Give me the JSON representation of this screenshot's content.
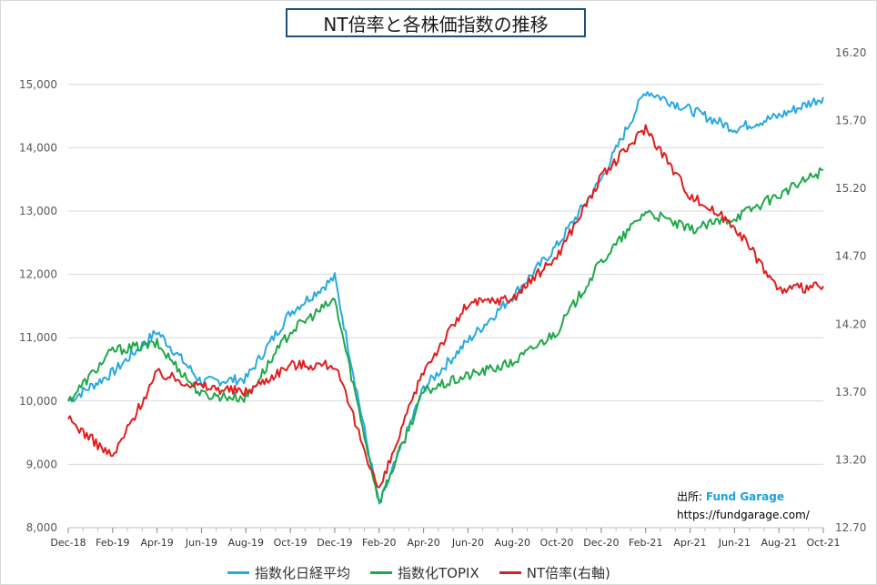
{
  "title": "NT倍率と各株価指数の推移",
  "source": {
    "label": "出所: ",
    "brand": "Fund Garage",
    "url": "https://fundgarage.com/"
  },
  "colors": {
    "nikkei": "#27a9e1",
    "topix": "#1fa84a",
    "nt": "#e11d1d",
    "grid": "#d9d9d9",
    "axis_text": "#595959"
  },
  "chart_data": {
    "type": "line",
    "title": "NT倍率と各株価指数の推移",
    "xlabel": "",
    "ylabel": "",
    "categories": [
      "Dec-18",
      "Feb-19",
      "Apr-19",
      "Jun-19",
      "Aug-19",
      "Oct-19",
      "Dec-19",
      "Feb-20",
      "Apr-20",
      "Jun-20",
      "Aug-20",
      "Oct-20",
      "Dec-20",
      "Feb-21",
      "Apr-21",
      "Jun-21",
      "Aug-21",
      "Oct-21"
    ],
    "ylim": [
      8000,
      15500
    ],
    "yticks": [
      "8,000",
      "9,000",
      "10,000",
      "11,000",
      "12,000",
      "13,000",
      "14,000",
      "15,000"
    ],
    "y2lim": [
      12.7,
      16.2
    ],
    "y2ticks": [
      "12.70",
      "13.20",
      "13.70",
      "14.20",
      "14.70",
      "15.20",
      "15.70",
      "16.20"
    ],
    "grid": true,
    "legend_position": "bottom",
    "series": [
      {
        "name": "指数化日経平均",
        "axis": "left",
        "values": [
          10000,
          10450,
          11100,
          10300,
          10350,
          11400,
          11950,
          8350,
          10200,
          10950,
          11650,
          12450,
          13500,
          14900,
          14600,
          14300,
          14500,
          14800
        ]
      },
      {
        "name": "指数化TOPIX",
        "axis": "left",
        "values": [
          10000,
          10800,
          10900,
          10100,
          10050,
          11100,
          11600,
          8400,
          10150,
          10400,
          10600,
          11100,
          12200,
          13000,
          12700,
          12900,
          13250,
          13650
        ]
      },
      {
        "name": "NT倍率(右軸)",
        "axis": "right",
        "values": [
          13.5,
          13.22,
          13.84,
          13.74,
          13.7,
          13.9,
          13.9,
          12.97,
          13.86,
          14.35,
          14.39,
          14.7,
          15.28,
          15.65,
          15.15,
          14.93,
          14.45,
          14.48
        ]
      }
    ]
  }
}
